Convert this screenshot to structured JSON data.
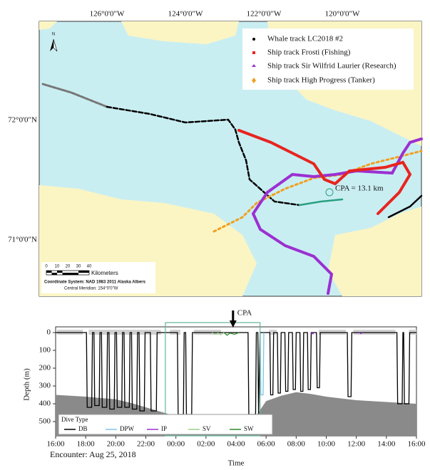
{
  "map": {
    "lon_labels": [
      "126°0'0\"W",
      "124°0'0\"W",
      "122°0'0\"W",
      "120°0'0\"W"
    ],
    "lat_labels": [
      "72°0'0\"N",
      "71°0'0\"N"
    ],
    "north": "N",
    "legend": [
      "Whale track LC2018 #2",
      "Ship track Frosti (Fishing)",
      "Ship track Sir Wilfrid Laurier (Research)",
      "Ship track High Progress (Tanker)"
    ],
    "cpa_label": "CPA = 13.1 km",
    "scale_labels": [
      "0",
      "10",
      "20",
      "30",
      "40"
    ],
    "scale_unit": "Kilometers",
    "coordinate_system": "Coordinate System: NAD 1983 2011 Alaska Albers",
    "central_meridian": "Central Meridian: 154°0'0\"W"
  },
  "chart_data": {
    "type": "line",
    "x_label": "Time",
    "y_label": "Depth (m)",
    "subtitle": "Encounter: Aug 25, 2018",
    "annotation": "CPA",
    "annotation_x": 27.8,
    "highlight_window": [
      23.3,
      29.6
    ],
    "legend_title": "Dive Type",
    "xlim": [
      16,
      40
    ],
    "xticks": [
      {
        "value": 16,
        "label": "16:00"
      },
      {
        "value": 18,
        "label": "18:00"
      },
      {
        "value": 20,
        "label": "20:00"
      },
      {
        "value": 22,
        "label": "22:00"
      },
      {
        "value": 24,
        "label": "00:00"
      },
      {
        "value": 26,
        "label": "02:00"
      },
      {
        "value": 28,
        "label": "04:00"
      },
      {
        "value": 30,
        "label": "06:00"
      },
      {
        "value": 32,
        "label": "08:00"
      },
      {
        "value": 34,
        "label": "10:00"
      },
      {
        "value": 36,
        "label": "12:00"
      },
      {
        "value": 38,
        "label": "14:00"
      },
      {
        "value": 40,
        "label": "16:00"
      }
    ],
    "ylim": [
      0,
      580
    ],
    "yticks": [
      0,
      100,
      200,
      300,
      400,
      500
    ],
    "y_inverted": true,
    "surface_periods": [
      [
        16.1,
        17.8
      ],
      [
        18.2,
        23.0
      ],
      [
        23.6,
        24.3
      ],
      [
        25.2,
        27.0
      ],
      [
        30.2,
        30.7
      ],
      [
        33.5,
        35.3
      ],
      [
        35.8,
        38.6
      ],
      [
        39.5,
        40
      ]
    ],
    "seafloor": {
      "x": [
        16,
        18,
        20,
        21,
        22,
        23,
        24,
        25,
        26,
        27,
        28,
        28.8,
        29.4,
        30,
        31,
        32,
        33,
        34,
        35,
        36,
        37,
        38,
        39,
        40
      ],
      "values": [
        350,
        360,
        375,
        395,
        420,
        445,
        470,
        495,
        520,
        535,
        545,
        500,
        460,
        385,
        355,
        335,
        345,
        360,
        370,
        380,
        385,
        390,
        395,
        400
      ]
    },
    "series": [
      {
        "name": "DB",
        "color": "#000000",
        "x": [
          16,
          18.05,
          18.1,
          18.4,
          18.45,
          18.55,
          18.6,
          18.9,
          18.95,
          19.05,
          19.1,
          19.4,
          19.45,
          19.55,
          19.6,
          19.9,
          19.95,
          20.05,
          20.1,
          20.4,
          20.45,
          20.55,
          20.6,
          20.9,
          20.95,
          21.05,
          21.1,
          21.4,
          21.45,
          21.55,
          21.6,
          21.9,
          21.95,
          22.3,
          22.35,
          22.7,
          22.75,
          24.1,
          24.15,
          24.5,
          24.55,
          24.65,
          24.7,
          25.05,
          25.1,
          28.8,
          28.85,
          29.3,
          29.35,
          29.45,
          29.5,
          29.6,
          30.25,
          30.3,
          30.45,
          30.5,
          30.75,
          30.8,
          30.95,
          31.0,
          31.25,
          31.3,
          31.45,
          31.5,
          31.75,
          31.8,
          31.95,
          32.0,
          32.25,
          32.3,
          32.45,
          32.5,
          32.75,
          32.8,
          32.95,
          33.0,
          33.35,
          33.4,
          33.55,
          33.6,
          35.4,
          35.45,
          35.65,
          35.7,
          38.7,
          38.75,
          39.05,
          39.1,
          39.15,
          39.2,
          39.5,
          39.55,
          40
        ],
        "values": [
          0,
          0,
          420,
          420,
          0,
          0,
          410,
          410,
          0,
          0,
          420,
          420,
          0,
          0,
          430,
          430,
          0,
          0,
          420,
          420,
          0,
          0,
          420,
          420,
          0,
          0,
          430,
          430,
          0,
          0,
          440,
          440,
          0,
          0,
          440,
          440,
          0,
          0,
          460,
          460,
          0,
          0,
          460,
          460,
          0,
          0,
          460,
          460,
          0,
          0,
          455,
          0,
          0,
          350,
          350,
          0,
          0,
          340,
          340,
          0,
          0,
          330,
          330,
          0,
          0,
          320,
          320,
          0,
          0,
          330,
          330,
          0,
          0,
          320,
          320,
          0,
          0,
          310,
          310,
          0,
          0,
          360,
          360,
          0,
          0,
          400,
          400,
          0,
          0,
          400,
          400,
          0,
          0
        ]
      },
      {
        "name": "DPW",
        "color": "#7fc4e6",
        "x": [
          29.6,
          29.65,
          29.8,
          29.85
        ],
        "values": [
          0,
          350,
          350,
          0
        ]
      },
      {
        "name": "IP",
        "color": "#9b30d0",
        "x": [
          33.0,
          33.1,
          33.2,
          null,
          36.2,
          36.3,
          36.4
        ],
        "values": [
          0,
          8,
          0,
          null,
          0,
          6,
          0
        ]
      },
      {
        "name": "SV",
        "color": "#9acd8a",
        "x": [
          26.4,
          26.6,
          26.8,
          27.0,
          27.2
        ],
        "values": [
          0,
          10,
          2,
          12,
          0
        ]
      },
      {
        "name": "SW",
        "color": "#2e8b2e",
        "x": [
          27.2,
          27.4,
          27.6,
          27.9,
          28.2
        ],
        "values": [
          0,
          15,
          3,
          10,
          0
        ]
      }
    ]
  }
}
